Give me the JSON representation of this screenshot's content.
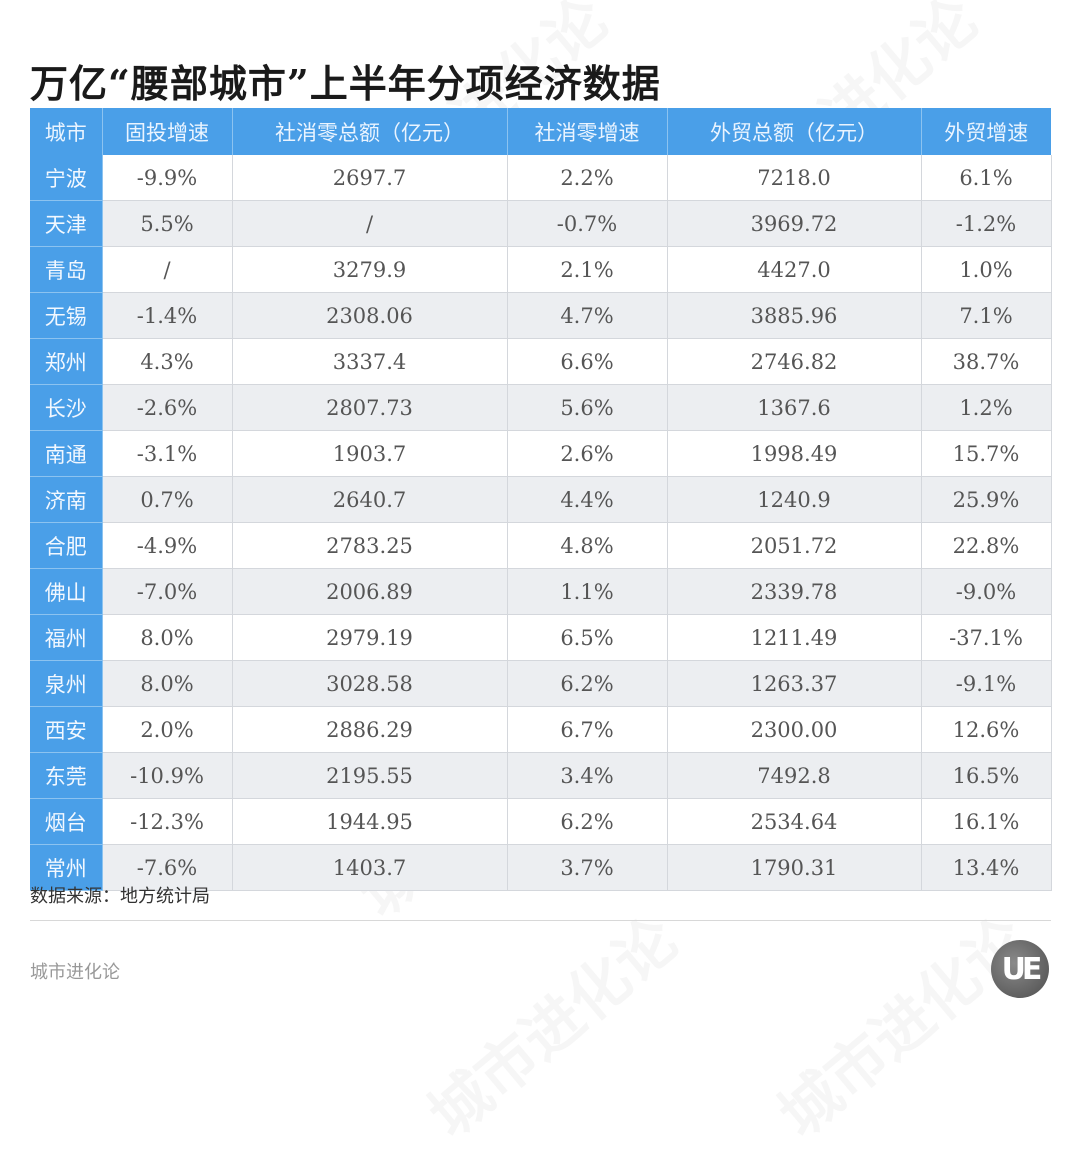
{
  "title": "万亿“腰部城市”上半年分项经济数据",
  "table": {
    "headers": [
      "城市",
      "固投增速",
      "社消零总额（亿元）",
      "社消零增速",
      "外贸总额（亿元）",
      "外贸增速"
    ],
    "rows": [
      [
        "宁波",
        "-9.9%",
        "2697.7",
        "2.2%",
        "7218.0",
        "6.1%"
      ],
      [
        "天津",
        "5.5%",
        "/",
        "-0.7%",
        "3969.72",
        "-1.2%"
      ],
      [
        "青岛",
        "/",
        "3279.9",
        "2.1%",
        "4427.0",
        "1.0%"
      ],
      [
        "无锡",
        "-1.4%",
        "2308.06",
        "4.7%",
        "3885.96",
        "7.1%"
      ],
      [
        "郑州",
        "4.3%",
        "3337.4",
        "6.6%",
        "2746.82",
        "38.7%"
      ],
      [
        "长沙",
        "-2.6%",
        "2807.73",
        "5.6%",
        "1367.6",
        "1.2%"
      ],
      [
        "南通",
        "-3.1%",
        "1903.7",
        "2.6%",
        "1998.49",
        "15.7%"
      ],
      [
        "济南",
        "0.7%",
        "2640.7",
        "4.4%",
        "1240.9",
        "25.9%"
      ],
      [
        "合肥",
        "-4.9%",
        "2783.25",
        "4.8%",
        "2051.72",
        "22.8%"
      ],
      [
        "佛山",
        "-7.0%",
        "2006.89",
        "1.1%",
        "2339.78",
        "-9.0%"
      ],
      [
        "福州",
        "8.0%",
        "2979.19",
        "6.5%",
        "1211.49",
        "-37.1%"
      ],
      [
        "泉州",
        "8.0%",
        "3028.58",
        "6.2%",
        "1263.37",
        "-9.1%"
      ],
      [
        "西安",
        "2.0%",
        "2886.29",
        "6.7%",
        "2300.00",
        "12.6%"
      ],
      [
        "东莞",
        "-10.9%",
        "2195.55",
        "3.4%",
        "7492.8",
        "16.5%"
      ],
      [
        "烟台",
        "-12.3%",
        "1944.95",
        "6.2%",
        "2534.64",
        "16.1%"
      ],
      [
        "常州",
        "-7.6%",
        "1403.7",
        "3.7%",
        "1790.31",
        "13.4%"
      ]
    ]
  },
  "source": "数据来源：地方统计局",
  "brand": "城市进化论",
  "logo_text": "UE",
  "watermark_text": "城市进化论",
  "colors": {
    "header_bg": "#4a9fe8",
    "row_alt_bg": "#eceef1",
    "row_bg": "#ffffff"
  }
}
